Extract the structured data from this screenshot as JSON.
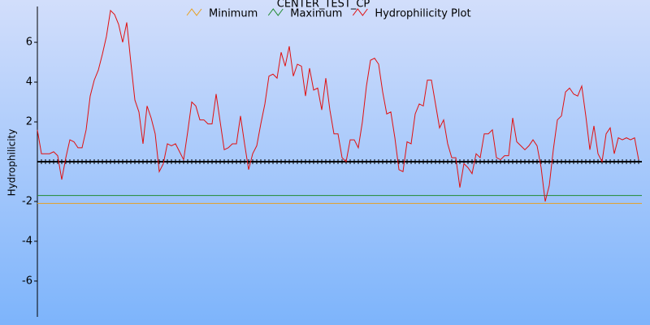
{
  "chart_data": {
    "type": "line",
    "title": "CENTER_TEST_CP",
    "y_label": "Hydrophilicity",
    "ylim": [
      -7.8,
      7.8
    ],
    "yticks": [
      -6,
      -4,
      -2,
      2,
      4,
      6
    ],
    "series": [
      {
        "name": "Minimum",
        "color": "#e8a020",
        "values": [
          -2.1
        ]
      },
      {
        "name": "Maximum",
        "color": "#208a30",
        "values": [
          -1.7
        ]
      },
      {
        "name": "Hydrophilicity Plot",
        "color": "#e01010",
        "values": [
          1.6,
          0.4,
          0.4,
          0.4,
          0.5,
          0.3,
          -0.9,
          0.2,
          1.1,
          1.0,
          0.7,
          0.7,
          1.6,
          3.3,
          4.1,
          4.6,
          5.4,
          6.3,
          7.6,
          7.4,
          6.9,
          6.0,
          7.0,
          5.0,
          3.1,
          2.5,
          0.9,
          2.8,
          2.2,
          1.4,
          -0.5,
          -0.1,
          0.9,
          0.8,
          0.9,
          0.5,
          0.1,
          1.5,
          3.0,
          2.8,
          2.1,
          2.1,
          1.9,
          1.9,
          3.4,
          2.0,
          0.6,
          0.7,
          0.9,
          0.9,
          2.3,
          0.9,
          -0.4,
          0.4,
          0.8,
          1.9,
          2.9,
          4.3,
          4.4,
          4.2,
          5.5,
          4.8,
          5.8,
          4.3,
          4.9,
          4.8,
          3.3,
          4.7,
          3.6,
          3.7,
          2.6,
          4.2,
          2.6,
          1.4,
          1.4,
          0.2,
          0.0,
          1.1,
          1.1,
          0.7,
          2.0,
          3.8,
          5.1,
          5.2,
          4.9,
          3.5,
          2.4,
          2.5,
          1.2,
          -0.4,
          -0.5,
          1.0,
          0.9,
          2.4,
          2.9,
          2.8,
          4.1,
          4.1,
          2.9,
          1.7,
          2.1,
          0.9,
          0.2,
          0.2,
          -1.3,
          -0.1,
          -0.3,
          -0.6,
          0.4,
          0.2,
          1.4,
          1.4,
          1.6,
          0.2,
          0.1,
          0.3,
          0.3,
          2.2,
          1.0,
          0.8,
          0.6,
          0.8,
          1.1,
          0.8,
          -0.3,
          -2.0,
          -1.2,
          0.6,
          2.1,
          2.3,
          3.5,
          3.7,
          3.4,
          3.3,
          3.8,
          2.3,
          0.6,
          1.8,
          0.4,
          0.0,
          1.4,
          1.7,
          0.4,
          1.2,
          1.1,
          1.2,
          1.1,
          1.2,
          0.1
        ]
      }
    ]
  }
}
